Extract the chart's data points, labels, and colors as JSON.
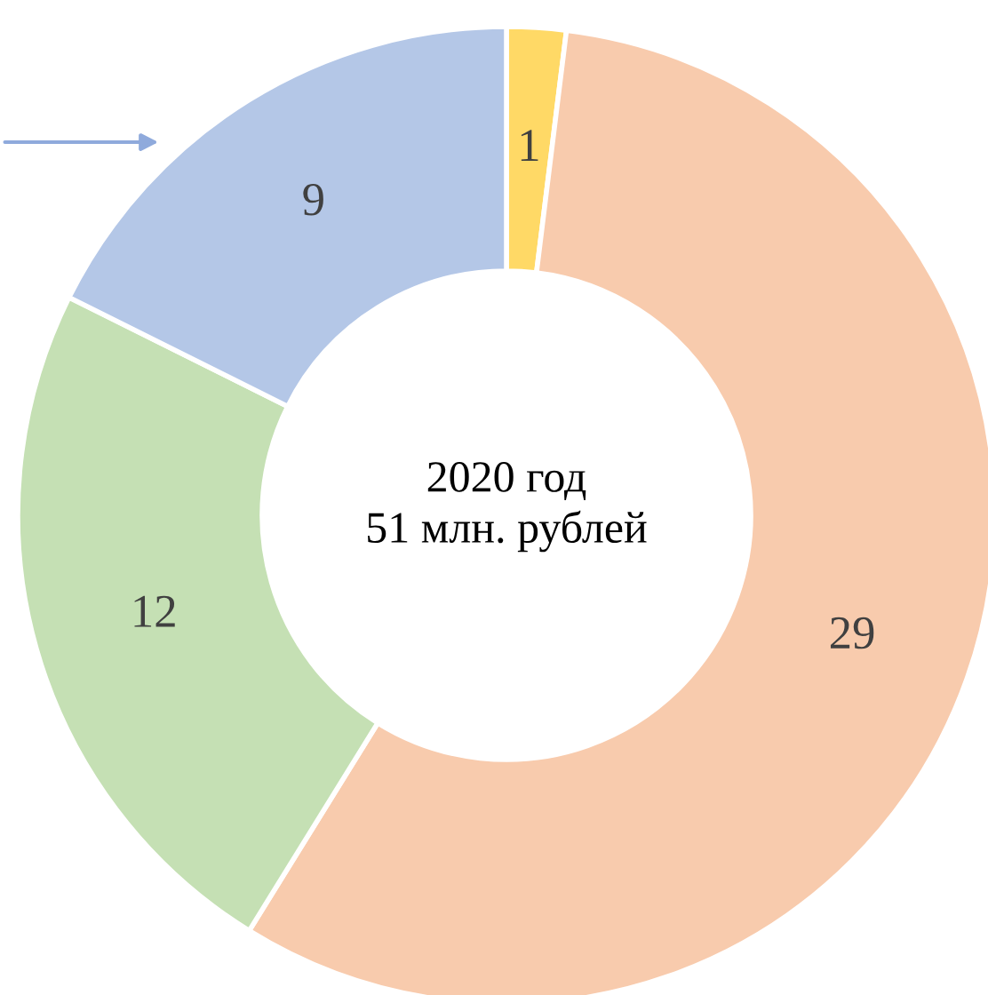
{
  "chart_data": {
    "type": "donut",
    "categories": [
      null,
      null,
      null,
      null
    ],
    "values": [
      1,
      29,
      12,
      9
    ],
    "colors": [
      "#ffd966",
      "#f8cbad",
      "#c5e0b4",
      "#b4c7e7"
    ],
    "data_labels": true,
    "annotations": [
      "2020 год\n51 млн. рублей"
    ]
  }
}
